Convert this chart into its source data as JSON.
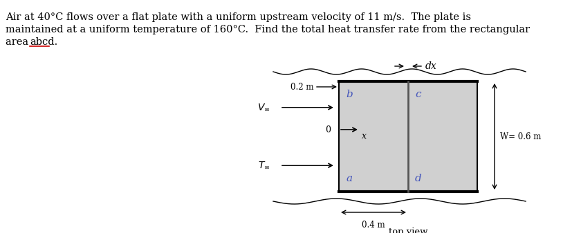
{
  "title_line1": "Air at 40°C flows over a flat plate with a uniform upstream velocity of 11 m/s.  The plate is",
  "title_line2": "maintained at a uniform temperature of 160°C.  Find the total heat transfer rate from the rectangular",
  "title_line3": "area abcd.",
  "abcd_underline": "abcd",
  "background_color": "#ffffff",
  "plate_color": "#d8d8d8",
  "label_color": "#4455bb",
  "dim_04": "0.4 m",
  "dim_02": "0.2 m",
  "dim_W": "W= 0.6 m",
  "dx_label": "dx",
  "top_view_label": "top view",
  "font_size_title": 10.5,
  "font_size_labels": 9.5,
  "font_size_dim": 8.5,
  "font_size_abcd": 11
}
